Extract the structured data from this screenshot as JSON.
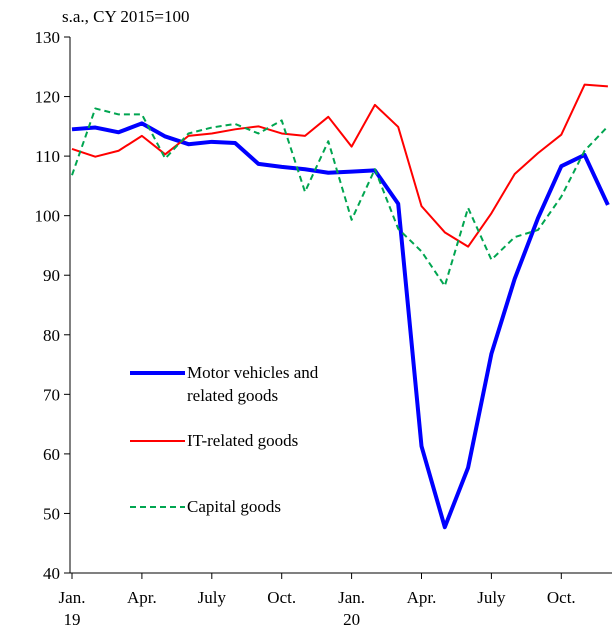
{
  "chart_data": {
    "type": "line",
    "y_axis_label": "s.a., CY 2015=100",
    "categories": [
      "Jan.",
      null,
      null,
      "Apr.",
      null,
      null,
      "July",
      null,
      null,
      "Oct.",
      null,
      null,
      "Jan.",
      null,
      null,
      "Apr.",
      null,
      null,
      "July",
      null,
      null,
      "Oct.",
      null,
      null
    ],
    "years": [
      "19",
      null,
      null,
      null,
      null,
      null,
      null,
      null,
      null,
      null,
      null,
      null,
      "20",
      null,
      null,
      null,
      null,
      null,
      null,
      null,
      null,
      null,
      null,
      null
    ],
    "ylim": [
      40,
      130
    ],
    "yticks": [
      40,
      50,
      60,
      70,
      80,
      90,
      100,
      110,
      120,
      130
    ],
    "series": [
      {
        "name": "Motor vehicles and related goods",
        "color": "#0000ff",
        "style": "solid",
        "width": 4,
        "values": [
          114.5,
          114.8,
          114,
          115.5,
          113.3,
          112,
          112.4,
          112.2,
          108.7,
          108.2,
          107.8,
          107.2,
          107.4,
          107.6,
          102,
          61.3,
          47.7,
          57.7,
          76.8,
          89.4,
          99.6,
          108.3,
          110.2,
          101.8
        ]
      },
      {
        "name": "IT-related goods",
        "color": "#ff0000",
        "style": "solid",
        "width": 2,
        "values": [
          111.2,
          109.9,
          110.9,
          113.4,
          110.3,
          113.4,
          113.8,
          114.5,
          115,
          113.8,
          113.4,
          116.6,
          111.6,
          118.6,
          114.9,
          101.6,
          97.2,
          94.8,
          100.4,
          107,
          110.5,
          113.6,
          122,
          121.7
        ]
      },
      {
        "name": "Capital goods",
        "color": "#00a550",
        "style": "dashed",
        "width": 2,
        "values": [
          106.8,
          118,
          117,
          117,
          109.6,
          113.8,
          114.8,
          115.4,
          113.8,
          116,
          104,
          112.5,
          99.3,
          107.8,
          97.8,
          94,
          88.2,
          101.3,
          92.6,
          96.4,
          97.6,
          103.2,
          110.9,
          115
        ]
      }
    ]
  }
}
